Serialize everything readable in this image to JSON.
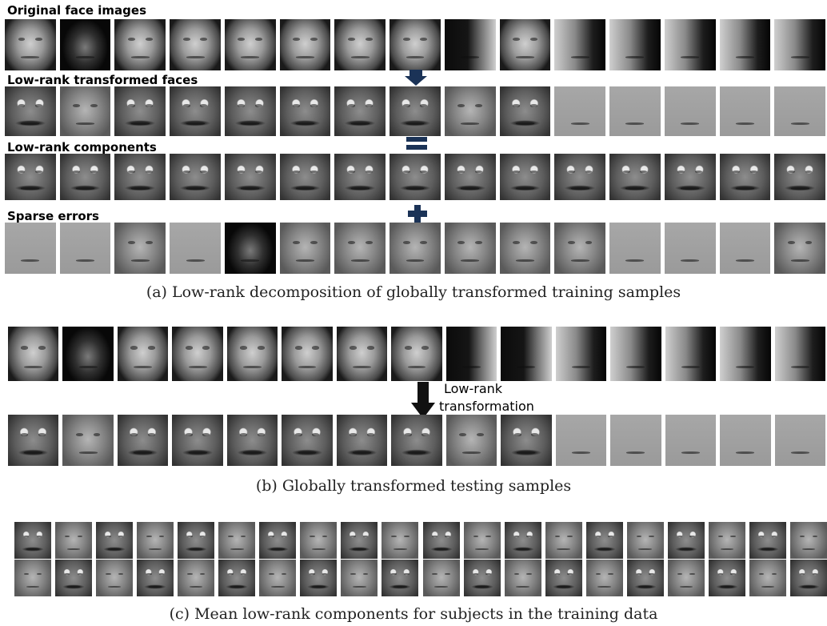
{
  "panel_a": {
    "row_labels": {
      "original": "Original face images",
      "transformed": "Low-rank transformed faces",
      "components": "Low-rank components",
      "errors": "Sparse errors"
    },
    "caption": "(a) Low-rank decomposition of globally transformed training samples"
  },
  "panel_b": {
    "arrow_label_line1": "Low-rank",
    "arrow_label_line2": "transformation",
    "caption": "(b) Globally transformed testing samples"
  },
  "panel_c": {
    "caption": "(c) Mean low-rank components for subjects in the training data"
  },
  "colors": {
    "operator": "#1b3357",
    "background": "#ffffff"
  }
}
